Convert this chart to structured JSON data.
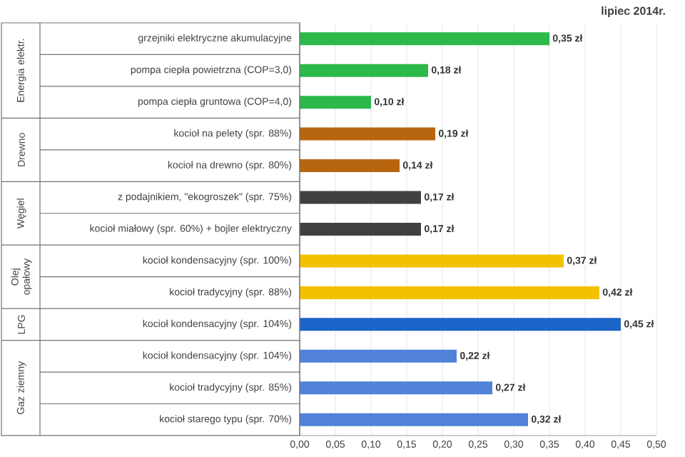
{
  "chart_data": {
    "type": "bar",
    "orientation": "horizontal",
    "title": "lipiec 2014r.",
    "categories": [
      "grzejniki elektryczne akumulacyjne",
      "pompa ciepła powietrzna (COP=3,0)",
      "pompa ciepła gruntowa (COP=4,0)",
      "kocioł na pelety (spr. 88%)",
      "kocioł na drewno (spr. 80%)",
      "z podajnikiem, \"ekogroszek\" (spr. 75%)",
      "kocioł miałowy (spr. 60%) + bojler elektryczny",
      "kocioł kondensacyjny (spr. 100%)",
      "kocioł tradycyjny (spr. 88%)",
      "kocioł kondensacyjny (spr. 104%)",
      "kocioł kondensacyjny (spr. 104%)",
      "kocioł tradycyjny (spr. 85%)",
      "kocioł starego typu (spr. 70%)"
    ],
    "values": [
      0.35,
      0.18,
      0.1,
      0.19,
      0.14,
      0.17,
      0.17,
      0.37,
      0.42,
      0.45,
      0.22,
      0.27,
      0.32
    ],
    "value_labels": [
      "0,35 zł",
      "0,18 zł",
      "0,10 zł",
      "0,19 zł",
      "0,14 zł",
      "0,17 zł",
      "0,17 zł",
      "0,37 zł",
      "0,42 zł",
      "0,45 zł",
      "0,22 zł",
      "0,27 zł",
      "0,32 zł"
    ],
    "colors": [
      "#2db84a",
      "#2db84a",
      "#2db84a",
      "#b8650f",
      "#b8650f",
      "#404040",
      "#404040",
      "#f2c200",
      "#f2c200",
      "#1a64c8",
      "#4f82d8",
      "#4f82d8",
      "#4f82d8"
    ],
    "annotations": [
      "Energia elektr.",
      "Drewno",
      "Węgiel",
      "Olej opałowy",
      "LPG",
      "Gaz ziemny"
    ],
    "xlim": [
      0,
      0.5
    ],
    "xticks": [
      {
        "value": 0,
        "label": "0,00"
      },
      {
        "value": 0.05,
        "label": "0,05"
      },
      {
        "value": 0.1,
        "label": "0,10"
      },
      {
        "value": 0.15,
        "label": "0,15"
      },
      {
        "value": 0.2,
        "label": "0,20"
      },
      {
        "value": 0.25,
        "label": "0,25"
      },
      {
        "value": 0.3,
        "label": "0,30"
      },
      {
        "value": 0.35,
        "label": "0,35"
      },
      {
        "value": 0.4,
        "label": "0,40"
      },
      {
        "value": 0.45,
        "label": "0,45"
      },
      {
        "value": 0.5,
        "label": "0,50"
      }
    ],
    "grid": "x"
  }
}
